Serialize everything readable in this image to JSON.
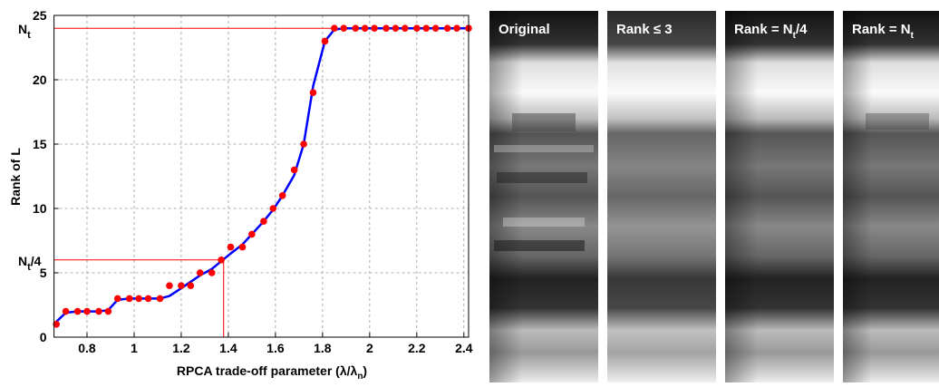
{
  "chart_data": {
    "type": "scatter",
    "x_label": [
      "RPCA trade-off parameter (λ/λ",
      "n",
      ")"
    ],
    "y_label": "Rank of L",
    "x": [
      0.67,
      0.71,
      0.76,
      0.8,
      0.85,
      0.89,
      0.93,
      0.98,
      1.02,
      1.06,
      1.11,
      1.15,
      1.2,
      1.24,
      1.28,
      1.33,
      1.37,
      1.41,
      1.46,
      1.5,
      1.55,
      1.59,
      1.63,
      1.68,
      1.72,
      1.76,
      1.81,
      1.85,
      1.89,
      1.94,
      1.98,
      2.02,
      2.07,
      2.11,
      2.15,
      2.2,
      2.24,
      2.28,
      2.33,
      2.37,
      2.42
    ],
    "series": [
      {
        "color": "#ff0000",
        "style": "dots",
        "values": [
          1,
          2,
          2,
          2,
          2,
          2,
          3,
          3,
          3,
          3,
          3,
          4,
          4,
          4,
          5,
          5,
          6,
          7,
          7,
          8,
          9,
          10,
          11,
          13,
          15,
          19,
          23,
          24,
          24,
          24,
          24,
          24,
          24,
          24,
          24,
          24,
          24,
          24,
          24,
          24,
          24
        ]
      },
      {
        "color": "#0000ff",
        "style": "line",
        "values": [
          1.2,
          1.9,
          2,
          2,
          2,
          2.1,
          2.9,
          3,
          3,
          3,
          3,
          3.2,
          3.8,
          4.3,
          4.8,
          5.3,
          5.9,
          6.5,
          7.2,
          8,
          9,
          9.9,
          11,
          12.6,
          15,
          19.5,
          23,
          23.9,
          24,
          24,
          24,
          24,
          24,
          24,
          24,
          24,
          24,
          24,
          24,
          24,
          24
        ]
      }
    ],
    "ref_lines": [
      {
        "value": 24,
        "label": [
          "N",
          "t"
        ],
        "color": "#ff0000"
      },
      {
        "value": 6,
        "x": 1.38,
        "label": [
          "N",
          "t",
          "/4"
        ],
        "color": "#ff0000"
      }
    ],
    "xlim": [
      0.66,
      2.42
    ],
    "ylim": [
      0,
      25
    ],
    "xticks": [
      0.8,
      1,
      1.2,
      1.4,
      1.6,
      1.8,
      2,
      2.2,
      2.4
    ],
    "yticks": [
      0,
      5,
      10,
      15,
      20,
      25
    ],
    "grid": true
  },
  "panels": [
    {
      "title": [
        "Original"
      ]
    },
    {
      "title": [
        "Rank ≤ 3"
      ]
    },
    {
      "title": [
        "Rank = N",
        "t",
        "/4"
      ]
    },
    {
      "title": [
        "Rank = N",
        "t"
      ]
    }
  ]
}
